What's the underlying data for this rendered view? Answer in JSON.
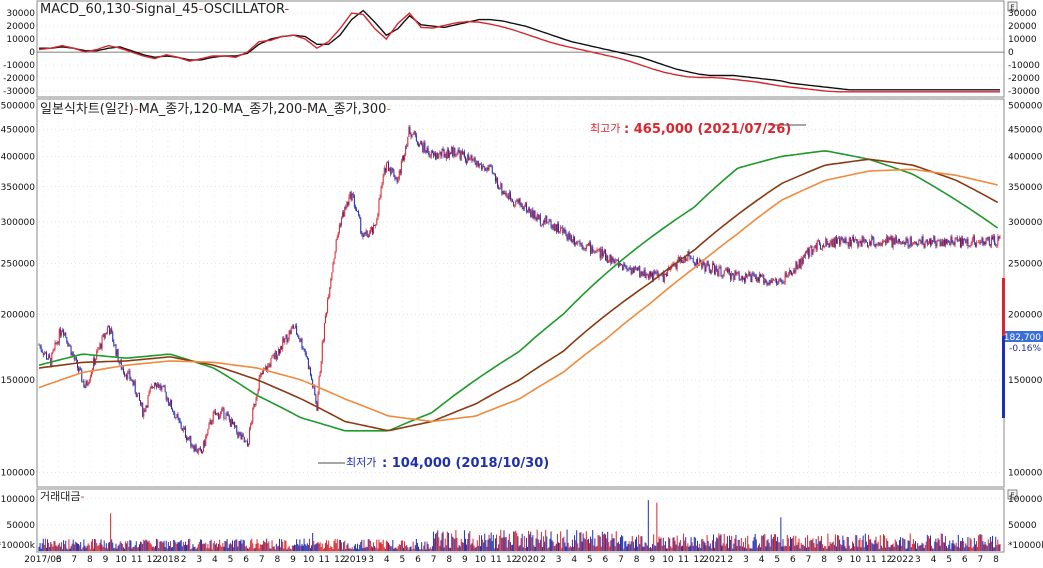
{
  "colors": {
    "price_up": "#d8262f",
    "price_down": "#1f2fb0",
    "macd": "#111111",
    "signal": "#d8262f",
    "ma120": "#1e9a2a",
    "ma200": "#8a3a12",
    "ma300": "#f08a3c",
    "bg": "#ffffff",
    "grid": "#cfcfcf",
    "high_text": "#d8262f",
    "low_text": "#1f2fb0",
    "current_box": "#3a6fd8"
  },
  "panels": {
    "macd_title": {
      "macd_label": "MACD_60,130",
      "signal_label": "Signal_45",
      "osc_label": "OSCILLATOR",
      "sep": "-"
    },
    "price_title": {
      "chart_label": "일본식차트(일간)",
      "ma120_label": "MA_종가,120",
      "ma200_label": "MA_종가,200",
      "ma300_label": "MA_종가,300",
      "sep": "-"
    },
    "volume_title": {
      "label": "거래대금",
      "sep": "-"
    },
    "macd_corner": "E",
    "volume_corner": "E"
  },
  "annotations": {
    "high_label": "최고가",
    "high_value": ": 465,000 (2021/07/26)",
    "low_label": "최저가",
    "low_value": ": 104,000 (2018/10/30)",
    "current_price": "182,700",
    "current_change": "-0.16%"
  },
  "chart_data": [
    {
      "type": "line",
      "name": "MACD oscillator",
      "x_range": [
        "2017-03",
        "2022-08"
      ],
      "y_ticks": [
        30000,
        20000,
        10000,
        0,
        -10000,
        -20000,
        -30000
      ],
      "y_tick_labels": [
        "30000",
        "20000",
        "10000",
        "0",
        "-10000",
        "-20000",
        "-30000"
      ],
      "ylim": [
        -33000,
        37000
      ],
      "series": [
        {
          "name": "MACD_60,130",
          "t": [
            0,
            2,
            4,
            6,
            8,
            10,
            12,
            14,
            16,
            18,
            20,
            22,
            24,
            26,
            28,
            30,
            32,
            34,
            36,
            38,
            40,
            42,
            44,
            46,
            48,
            50,
            52,
            54,
            56,
            58,
            60,
            62,
            64,
            66
          ],
          "values": [
            3000,
            3000,
            4000,
            3000,
            1000,
            1000,
            3000,
            4000,
            1000,
            -2000,
            -4000,
            -3000,
            -4000,
            -6000,
            -6000,
            -4000,
            -3000,
            -3000,
            -1000,
            6000,
            10000,
            12000,
            13000,
            12000,
            6000,
            6000,
            13000,
            25000,
            32000,
            23000,
            13000,
            18000,
            28000,
            21000
          ]
        },
        {
          "name": "Signal_45",
          "t": [
            0,
            2,
            4,
            6,
            8,
            10,
            12,
            14,
            16,
            18,
            20,
            22,
            24,
            26,
            28,
            30,
            32,
            34,
            36,
            38,
            40,
            42,
            44,
            46,
            48,
            50,
            52,
            54,
            56,
            58,
            60,
            62,
            64,
            66
          ],
          "values": [
            2000,
            3000,
            5000,
            3000,
            0,
            2000,
            5000,
            3000,
            0,
            -3000,
            -5000,
            -2000,
            -4000,
            -7000,
            -5000,
            -3000,
            -3000,
            -4000,
            0,
            8000,
            9000,
            12000,
            13000,
            10000,
            3000,
            8000,
            18000,
            30000,
            29000,
            18000,
            10000,
            22000,
            30000,
            19000
          ]
        }
      ],
      "series_ext": [
        {
          "name": "MACD_60,130",
          "t": [
            66,
            68,
            70,
            72,
            74,
            76,
            78,
            80,
            82,
            84,
            86,
            88,
            90,
            92,
            94,
            96,
            98,
            100,
            102,
            104,
            106,
            108,
            110,
            112,
            114,
            116,
            118,
            120,
            122,
            124,
            126,
            128,
            130,
            132,
            134,
            136,
            138,
            140,
            142,
            144,
            146,
            148,
            150,
            152,
            154,
            156,
            158,
            160,
            162,
            164,
            166
          ],
          "values": [
            21000,
            20000,
            19000,
            21000,
            23000,
            25000,
            25000,
            24000,
            22000,
            20000,
            17000,
            14000,
            11000,
            8000,
            6000,
            4000,
            2000,
            0,
            -2000,
            -4000,
            -7000,
            -10000,
            -13000,
            -15000,
            -17000,
            -18000,
            -18000,
            -18000,
            -19000,
            -20000,
            -21000,
            -22000,
            -24000,
            -25000,
            -26000,
            -27000,
            -28000,
            -29000,
            -29000,
            -29000,
            -29000,
            -29000,
            -29000,
            -29000,
            -29000,
            -29000,
            -29000,
            -29000,
            -29000,
            -29000,
            -29000
          ]
        }
      ]
    },
    {
      "type": "candlestick",
      "name": "일본식차트(일간)",
      "y_scale": "log",
      "ylim": [
        95000,
        510000
      ],
      "y_ticks": [
        500000,
        450000,
        400000,
        350000,
        300000,
        250000,
        200000,
        150000,
        100000
      ],
      "y_tick_labels": [
        "500000",
        "450000",
        "400000",
        "350000",
        "300000",
        "250000",
        "200000",
        "150000",
        "100000"
      ],
      "x_tick_labels": [
        "2017/03",
        "6",
        "7",
        "8",
        "9",
        "10",
        "11",
        "12",
        "2018",
        "2",
        "3",
        "4",
        "5",
        "6",
        "7",
        "8",
        "9",
        "10",
        "11",
        "12",
        "2019",
        "3",
        "4",
        "5",
        "6",
        "7",
        "8",
        "9",
        "10",
        "11",
        "12",
        "2020",
        "2",
        "3",
        "4",
        "5",
        "6",
        "7",
        "8",
        "9",
        "10",
        "11",
        "12",
        "2021",
        "2",
        "3",
        "4",
        "5",
        "6",
        "7",
        "8",
        "9",
        "10",
        "11",
        "12",
        "2022",
        "3",
        "4",
        "5",
        "6",
        "7",
        "8"
      ],
      "close_path": {
        "t": [
          0,
          2,
          4,
          6,
          8,
          10,
          12,
          14,
          16,
          18,
          20,
          22,
          24,
          26,
          28,
          30,
          32,
          34,
          36,
          38,
          40,
          42,
          44,
          46,
          48,
          50,
          52,
          54,
          56,
          58,
          60,
          62,
          64,
          66
        ],
        "values": [
          175000,
          162000,
          190000,
          165000,
          145000,
          168000,
          190000,
          160000,
          150000,
          130000,
          150000,
          140000,
          125000,
          115000,
          108000,
          128000,
          130000,
          120000,
          112000,
          150000,
          162000,
          175000,
          190000,
          170000,
          133000,
          220000,
          300000,
          340000,
          280000,
          290000,
          390000,
          360000,
          450000,
          420000
        ]
      },
      "close_path_ext": {
        "t": [
          66,
          68,
          70,
          72,
          74,
          76,
          78,
          80,
          82,
          84,
          86,
          88,
          90,
          92,
          94,
          96,
          98,
          100,
          102,
          104,
          106,
          108,
          110,
          112,
          114,
          116,
          118,
          120,
          122,
          124,
          126,
          128,
          130,
          132,
          134,
          136,
          138,
          140,
          142,
          144,
          146,
          148,
          150,
          152,
          154,
          156,
          158,
          160,
          162,
          164,
          166
        ],
        "values": [
          420000,
          400000,
          405000,
          410000,
          395000,
          385000,
          375000,
          345000,
          330000,
          320000,
          305000,
          300000,
          290000,
          280000,
          272000,
          265000,
          258000,
          250000,
          245000,
          240000,
          238000,
          236000,
          250000,
          258000,
          250000,
          245000,
          240000,
          238000,
          236000,
          234000,
          232000,
          230000,
          240000,
          255000,
          270000,
          275000,
          275000,
          275000,
          275000,
          275000,
          275000,
          275000,
          275000,
          275000,
          275000,
          275000,
          275000,
          275000,
          275000,
          275000,
          275000
        ]
      },
      "series": [
        {
          "name": "MA_종가,120",
          "t": [
            0,
            4,
            8,
            12,
            16,
            20,
            24,
            28,
            32,
            36,
            40,
            44,
            48,
            52,
            56,
            60,
            64,
            68,
            72,
            76,
            80,
            84,
            88
          ],
          "values": [
            160000,
            168000,
            165000,
            168000,
            158000,
            140000,
            127000,
            120000,
            120000,
            130000,
            150000,
            170000,
            200000,
            240000,
            280000,
            320000,
            380000,
            400000,
            410000,
            395000,
            370000,
            330000,
            290000
          ]
        },
        {
          "name": "MA_종가,200",
          "t": [
            0,
            4,
            8,
            12,
            16,
            20,
            24,
            28,
            32,
            36,
            40,
            44,
            48,
            52,
            56,
            60,
            64,
            68,
            72,
            76,
            80,
            84,
            88
          ],
          "values": [
            158000,
            162000,
            163000,
            166000,
            160000,
            150000,
            138000,
            125000,
            120000,
            125000,
            135000,
            150000,
            170000,
            200000,
            230000,
            265000,
            310000,
            355000,
            385000,
            395000,
            385000,
            360000,
            325000
          ]
        },
        {
          "name": "MA_종가,300",
          "t": [
            0,
            4,
            8,
            12,
            16,
            20,
            24,
            28,
            32,
            36,
            40,
            44,
            48,
            52,
            56,
            60,
            64,
            68,
            72,
            76,
            80,
            84,
            88
          ],
          "values": [
            145000,
            155000,
            160000,
            163000,
            162000,
            158000,
            150000,
            138000,
            128000,
            125000,
            128000,
            138000,
            155000,
            180000,
            210000,
            245000,
            285000,
            330000,
            360000,
            375000,
            378000,
            368000,
            352000
          ]
        }
      ]
    },
    {
      "type": "bar",
      "name": "거래대금",
      "y_ticks": [
        100000,
        50000
      ],
      "y_tick_labels": [
        "100000",
        "50000"
      ],
      "unit_label": "*10000k",
      "ylim": [
        0,
        115000
      ]
    }
  ]
}
